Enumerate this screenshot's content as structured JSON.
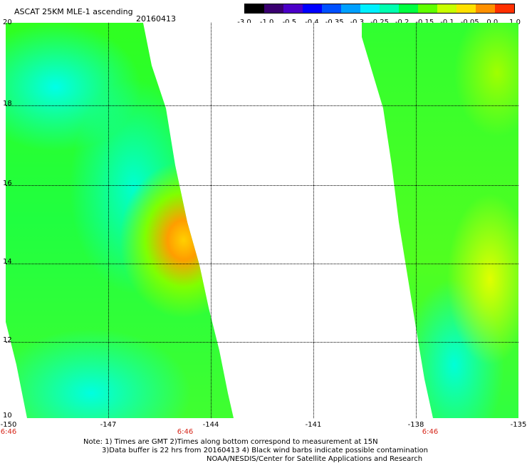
{
  "title": "ASCAT 25KM MLE-1 ascending",
  "date": "20160413",
  "colorbar": {
    "labels": [
      "-3.0",
      "-1.0",
      "-0.5",
      "-0.4",
      "-0.35",
      "-0.3",
      "-0.25",
      "-0.2",
      "-0.15",
      "-0.1",
      "-0.05",
      "0.0",
      "1.0"
    ],
    "colors": [
      "#000000",
      "#3a0070",
      "#4b00c8",
      "#0000ff",
      "#0050ff",
      "#00a0ff",
      "#00f0ff",
      "#00ffb0",
      "#00ff40",
      "#60ff00",
      "#c8ff00",
      "#ffe000",
      "#ff9000",
      "#ff3000"
    ]
  },
  "axes": {
    "x_ticks": [
      "-150",
      "-147",
      "-144",
      "-141",
      "-138",
      "-135"
    ],
    "y_ticks": [
      "20",
      "18",
      "16",
      "14",
      "12",
      "10"
    ],
    "time_labels": [
      "6:46",
      "6:46",
      "6:46"
    ]
  },
  "notes": {
    "line1": "Note: 1) Times are GMT 2)Times along bottom correspond to measurement at 15N",
    "line2": "3)Data buffer is 22 hrs from 20160413 4) Black wind barbs indicate possible contamination",
    "line3": "NOAA/NESDIS/Center for Satellite Applications and Research"
  }
}
